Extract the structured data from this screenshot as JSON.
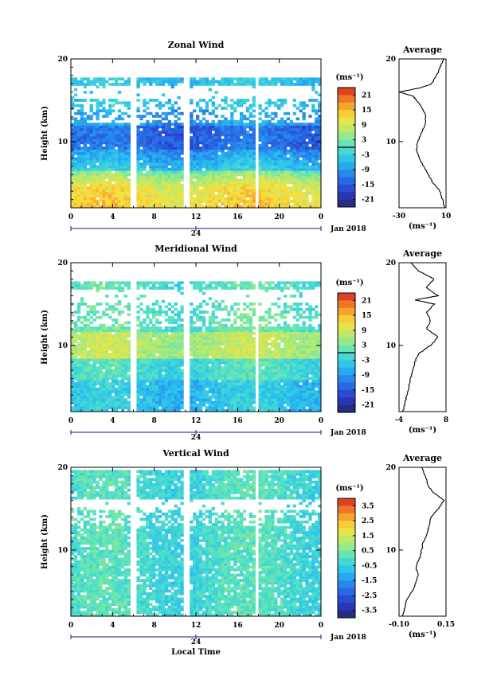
{
  "chart_data": [
    {
      "type": "heatmap",
      "title": "Zonal Wind",
      "ylabel": "Height (km)",
      "xlabel": "",
      "x_ticks": [
        "0",
        "4",
        "8",
        "12",
        "16",
        "20",
        "0"
      ],
      "y_ticks": [
        "20",
        "10"
      ],
      "xlim": [
        0,
        24
      ],
      "ylim": [
        2,
        20
      ],
      "date_marker": "24",
      "date_label": "Jan 2018",
      "colorbar": {
        "unit": "(ms⁻¹)",
        "ticks": [
          "21",
          "15",
          "9",
          "3",
          "-3",
          "-9",
          "-15",
          "-21"
        ],
        "range": [
          -24,
          24
        ]
      },
      "gaps": [
        [
          5.8,
          6.4
        ],
        [
          10.9,
          11.4
        ],
        [
          17.6,
          18.0
        ]
      ],
      "profile_up_to_km": 17,
      "profile": {
        "title": "Average",
        "xlabel": "(ms⁻¹)",
        "x_ticks": [
          "-30",
          "10"
        ],
        "xlim": [
          -30,
          10
        ],
        "heights": [
          2,
          3,
          4,
          5,
          6,
          7,
          8,
          9,
          10,
          11,
          12,
          13,
          14,
          15,
          15.5,
          16,
          16.5,
          17,
          18,
          19,
          20
        ],
        "values": [
          9,
          7,
          5,
          -1,
          -5,
          -9,
          -13,
          -15,
          -14,
          -11,
          -8,
          -7,
          -10,
          -15,
          -18,
          -30,
          -12,
          -2,
          2,
          5,
          8
        ]
      }
    },
    {
      "type": "heatmap",
      "title": "Meridional Wind",
      "ylabel": "Height (km)",
      "xlabel": "",
      "x_ticks": [
        "0",
        "4",
        "8",
        "12",
        "16",
        "20",
        "0"
      ],
      "y_ticks": [
        "20",
        "10"
      ],
      "xlim": [
        0,
        24
      ],
      "ylim": [
        2,
        20
      ],
      "date_marker": "24",
      "date_label": "Jan 2018",
      "colorbar": {
        "unit": "(ms⁻¹)",
        "ticks": [
          "21",
          "15",
          "9",
          "3",
          "-3",
          "-9",
          "-15",
          "-21"
        ],
        "range": [
          -24,
          24
        ]
      },
      "gaps": [
        [
          5.8,
          6.4
        ],
        [
          10.9,
          11.4
        ],
        [
          17.6,
          18.0
        ]
      ],
      "profile_up_to_km": 17,
      "profile": {
        "title": "Average",
        "xlabel": "(ms⁻¹)",
        "x_ticks": [
          "-4",
          "8"
        ],
        "xlim": [
          -4,
          8
        ],
        "heights": [
          2,
          3,
          4,
          5,
          6,
          7,
          8,
          9,
          10,
          11,
          12,
          13,
          14,
          15,
          15.5,
          16,
          17,
          18,
          19,
          20
        ],
        "values": [
          -3,
          -2.5,
          -2,
          -1.5,
          -1,
          -0.5,
          0,
          1,
          4,
          6,
          3,
          4,
          3,
          5,
          0,
          6,
          3,
          5,
          1,
          -1
        ]
      }
    },
    {
      "type": "heatmap",
      "title": "Vertical Wind",
      "ylabel": "Height (km)",
      "xlabel": "Local Time",
      "x_ticks": [
        "0",
        "4",
        "8",
        "12",
        "16",
        "20",
        "0"
      ],
      "y_ticks": [
        "20",
        "10"
      ],
      "xlim": [
        0,
        24
      ],
      "ylim": [
        2,
        20
      ],
      "date_marker": "24",
      "date_label": "Jan 2018",
      "colorbar": {
        "unit": "(ms⁻¹)",
        "ticks": [
          "3.5",
          "2.5",
          "1.5",
          "0.5",
          "-0.5",
          "-1.5",
          "-2.5",
          "-3.5"
        ],
        "range": [
          -4,
          4
        ]
      },
      "gaps": [
        [
          5.8,
          6.4
        ],
        [
          10.9,
          11.4
        ],
        [
          17.6,
          18.0
        ]
      ],
      "profile_up_to_km": 20,
      "profile": {
        "title": "Average",
        "xlabel": "(ms⁻¹)",
        "x_ticks": [
          "-0.10",
          "0.15"
        ],
        "xlim": [
          -0.1,
          0.15
        ],
        "heights": [
          2,
          3,
          4,
          5,
          6,
          7,
          8,
          9,
          10,
          11,
          12,
          13,
          14,
          15,
          16,
          17,
          18,
          19,
          20
        ],
        "values": [
          -0.08,
          -0.07,
          -0.06,
          -0.03,
          -0.01,
          0.0,
          -0.01,
          0.01,
          0.02,
          0.03,
          0.05,
          0.06,
          0.07,
          0.11,
          0.14,
          0.08,
          0.05,
          0.04,
          0.02
        ]
      }
    }
  ]
}
